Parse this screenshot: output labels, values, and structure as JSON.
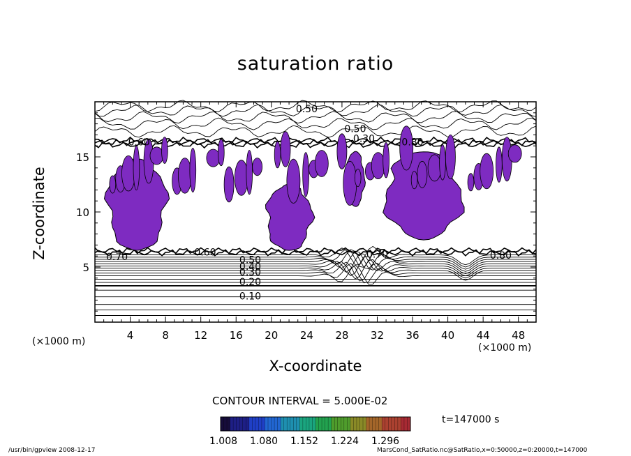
{
  "chart_data": {
    "type": "heatmap",
    "title": "saturation ratio",
    "xlabel": "X-coordinate",
    "ylabel": "Z-coordinate",
    "x_unit_label": "(×1000 m)",
    "y_unit_label": "(×1000 m)",
    "xlim": [
      0,
      50
    ],
    "ylim": [
      0,
      20
    ],
    "x_ticks": [
      4,
      8,
      12,
      16,
      20,
      24,
      28,
      32,
      36,
      40,
      44,
      48
    ],
    "y_ticks": [
      5,
      10,
      15
    ],
    "contour_interval_text": "CONTOUR INTERVAL = 5.000E-02",
    "contour_labels": [
      {
        "text": "0.10",
        "x": 17.6,
        "z": 2.3
      },
      {
        "text": "0.20",
        "x": 17.6,
        "z": 3.6
      },
      {
        "text": "0.30",
        "x": 17.6,
        "z": 4.5
      },
      {
        "text": "0.40",
        "x": 17.6,
        "z": 5.0
      },
      {
        "text": "0.50",
        "x": 17.6,
        "z": 5.6
      },
      {
        "text": "0.60",
        "x": 12.5,
        "z": 6.3
      },
      {
        "text": "0.70",
        "x": 2.5,
        "z": 5.9
      },
      {
        "text": "0.70",
        "x": 32.0,
        "z": 6.1
      },
      {
        "text": "0.80",
        "x": 46.0,
        "z": 6.0
      },
      {
        "text": "0.50",
        "x": 24.0,
        "z": 19.3
      },
      {
        "text": "0.50",
        "x": 29.5,
        "z": 17.5
      },
      {
        "text": "0.30",
        "x": 30.5,
        "z": 16.6
      },
      {
        "text": "0.60",
        "x": 5.0,
        "z": 16.3
      },
      {
        "text": "0.80",
        "x": 36.0,
        "z": 16.3
      }
    ],
    "shaded_regions": [
      {
        "x": [
          1.5,
          8.0
        ],
        "z": [
          6.5,
          14.8
        ]
      },
      {
        "x": [
          19.5,
          24.5
        ],
        "z": [
          6.5,
          12.5
        ]
      },
      {
        "x": [
          28.5,
          30.5
        ],
        "z": [
          10.5,
          15.5
        ]
      },
      {
        "x": [
          33.0,
          41.5
        ],
        "z": [
          7.5,
          15.5
        ]
      }
    ],
    "colorbar": {
      "min": 1.008,
      "max": 1.296,
      "tick_labels": [
        "1.008",
        "1.080",
        "1.152",
        "1.224",
        "1.296"
      ],
      "colors": [
        "#160c3a",
        "#1e1f86",
        "#1f3fc6",
        "#2166d2",
        "#1e8fb0",
        "#1aa57f",
        "#22a24f",
        "#4f9c2c",
        "#8a8a27",
        "#a4662a",
        "#ab4130",
        "#a72a33"
      ]
    },
    "fill_color": "#7e2bc1",
    "time_label": "t=147000 s",
    "grid": false
  },
  "footer": {
    "left": "/usr/bin/gpview   2008-12-17",
    "right": "MarsCond_SatRatio.nc@SatRatio,x=0:50000,z=0:20000,t=147000"
  }
}
